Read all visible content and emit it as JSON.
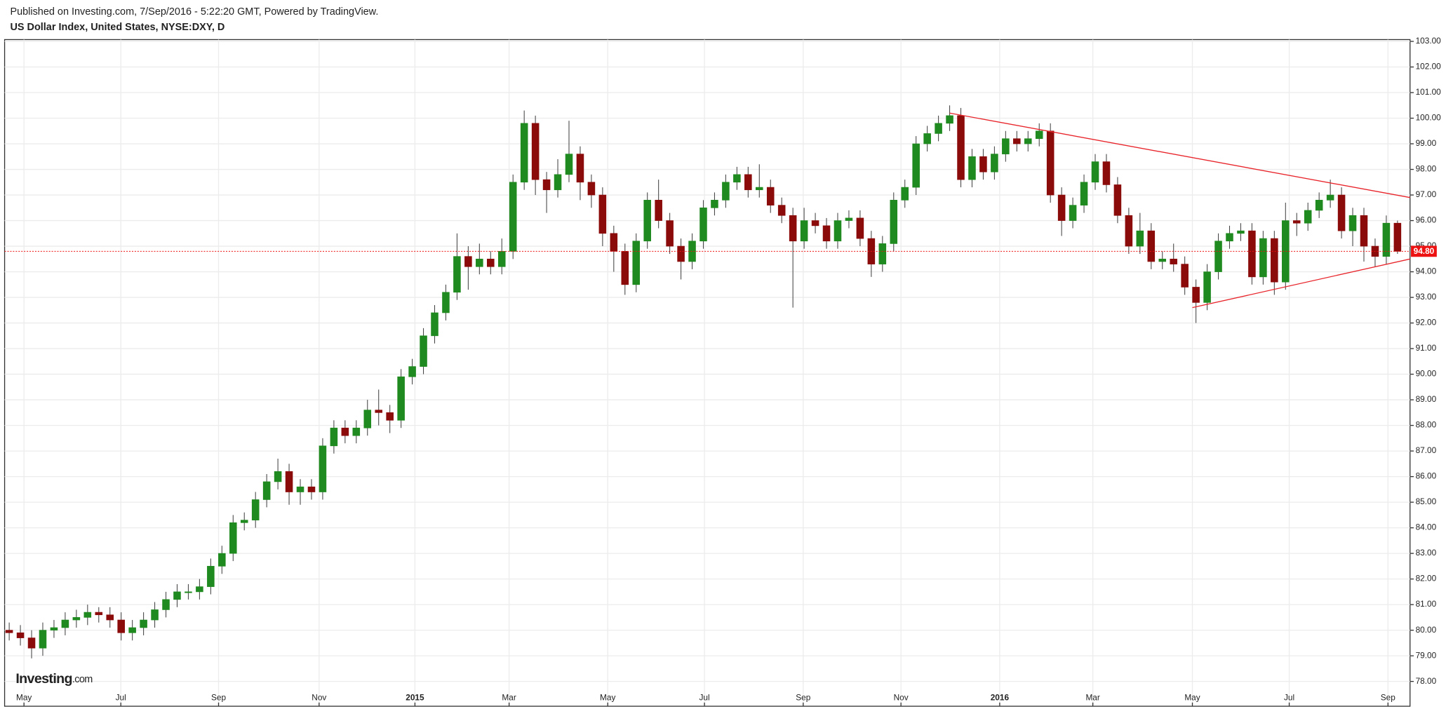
{
  "header": "Published on Investing.com, 7/Sep/2016 - 5:22:20 GMT, Powered by TradingView.",
  "logo": {
    "brand": "Investing",
    "suffix": ".com"
  },
  "chart_data": {
    "type": "candlestick",
    "title": "US Dollar Index, United States, NYSE:DXY, D",
    "up_color": "#1f8a1f",
    "down_color": "#8b0a0a",
    "wick_color": "#444444",
    "grid": true,
    "xlim": [
      -0.41,
      125.12
    ],
    "ylim": [
      77.03,
      103.07
    ],
    "xticks": [
      {
        "value": 1.32,
        "label": "May"
      },
      {
        "value": 9.97,
        "label": "Jul"
      },
      {
        "value": 18.7,
        "label": "Sep"
      },
      {
        "value": 27.68,
        "label": "Nov"
      },
      {
        "value": 36.24,
        "label": "2015"
      },
      {
        "value": 44.65,
        "label": "Mar"
      },
      {
        "value": 53.46,
        "label": "May"
      },
      {
        "value": 62.1,
        "label": "Jul"
      },
      {
        "value": 70.92,
        "label": "Sep"
      },
      {
        "value": 79.65,
        "label": "Nov"
      },
      {
        "value": 88.47,
        "label": "2016"
      },
      {
        "value": 96.79,
        "label": "Mar"
      },
      {
        "value": 105.68,
        "label": "May"
      },
      {
        "value": 114.33,
        "label": "Jul"
      },
      {
        "value": 123.15,
        "label": "Sep"
      }
    ],
    "yticks": [
      {
        "value": 78,
        "label": "78.00"
      },
      {
        "value": 79,
        "label": "79.00"
      },
      {
        "value": 80,
        "label": "80.00"
      },
      {
        "value": 81,
        "label": "81.00"
      },
      {
        "value": 82,
        "label": "82.00"
      },
      {
        "value": 83,
        "label": "83.00"
      },
      {
        "value": 84,
        "label": "84.00"
      },
      {
        "value": 85,
        "label": "85.00"
      },
      {
        "value": 86,
        "label": "86.00"
      },
      {
        "value": 87,
        "label": "87.00"
      },
      {
        "value": 88,
        "label": "88.00"
      },
      {
        "value": 89,
        "label": "89.00"
      },
      {
        "value": 90,
        "label": "90.00"
      },
      {
        "value": 91,
        "label": "91.00"
      },
      {
        "value": 92,
        "label": "92.00"
      },
      {
        "value": 93,
        "label": "93.00"
      },
      {
        "value": 94,
        "label": "94.00"
      },
      {
        "value": 95,
        "label": "95.00"
      },
      {
        "value": 96,
        "label": "96.00"
      },
      {
        "value": 97,
        "label": "97.00"
      },
      {
        "value": 98,
        "label": "98.00"
      },
      {
        "value": 99,
        "label": "99.00"
      },
      {
        "value": 100,
        "label": "100.00"
      },
      {
        "value": 101,
        "label": "101.00"
      },
      {
        "value": 102,
        "label": "102.00"
      },
      {
        "value": 103,
        "label": "103.00"
      }
    ],
    "open": [
      80.0,
      79.9,
      79.7,
      79.3,
      80.0,
      80.1,
      80.4,
      80.5,
      80.7,
      80.6,
      80.4,
      79.9,
      80.1,
      80.4,
      80.8,
      81.2,
      81.5,
      81.5,
      81.7,
      82.5,
      83.0,
      84.2,
      84.3,
      85.1,
      85.8,
      86.2,
      85.4,
      85.6,
      85.4,
      87.2,
      87.9,
      87.6,
      87.9,
      88.6,
      88.5,
      88.2,
      89.9,
      90.3,
      91.5,
      92.4,
      93.2,
      94.6,
      94.2,
      94.5,
      94.2,
      94.8,
      97.5,
      99.8,
      97.6,
      97.2,
      97.8,
      98.6,
      97.5,
      97.0,
      95.5,
      94.8,
      93.5,
      95.2,
      96.8,
      96.0,
      95.0,
      94.4,
      95.2,
      96.5,
      96.8,
      97.5,
      97.8,
      97.2,
      97.3,
      96.6,
      96.2,
      95.2,
      96.0,
      95.8,
      95.2,
      96.0,
      96.1,
      95.3,
      94.3,
      95.1,
      96.8,
      97.3,
      99.0,
      99.4,
      99.8,
      100.1,
      97.6,
      98.5,
      97.9,
      98.6,
      99.2,
      99.0,
      99.2,
      99.5,
      97.0,
      96.0,
      96.6,
      97.5,
      98.3,
      97.4,
      96.2,
      95.0,
      95.6,
      94.4,
      94.5,
      94.3,
      93.4,
      92.8,
      94.0,
      95.2,
      95.5,
      95.6,
      93.8,
      95.3,
      93.6,
      96.0,
      95.9,
      96.4,
      96.8,
      97.0,
      95.6,
      96.2,
      95.0,
      94.6,
      95.9
    ],
    "high": [
      80.3,
      80.2,
      80.0,
      80.3,
      80.4,
      80.7,
      80.8,
      81.0,
      80.9,
      80.9,
      80.7,
      80.4,
      80.7,
      81.1,
      81.5,
      81.8,
      81.8,
      82.0,
      82.8,
      83.3,
      84.5,
      84.6,
      85.4,
      86.1,
      86.7,
      86.5,
      85.9,
      85.9,
      87.5,
      88.2,
      88.2,
      88.2,
      89.0,
      89.4,
      88.8,
      90.2,
      90.6,
      91.8,
      92.7,
      93.5,
      95.5,
      95.0,
      95.1,
      94.8,
      95.3,
      97.8,
      100.3,
      100.1,
      97.9,
      98.4,
      99.9,
      98.9,
      97.8,
      97.3,
      95.8,
      95.1,
      95.5,
      97.1,
      97.6,
      96.3,
      95.3,
      95.5,
      96.8,
      97.1,
      97.8,
      98.1,
      98.1,
      98.2,
      97.6,
      96.9,
      96.5,
      96.5,
      96.3,
      96.1,
      96.3,
      96.4,
      96.4,
      95.6,
      95.4,
      97.1,
      97.6,
      99.3,
      99.7,
      100.1,
      100.5,
      100.4,
      98.8,
      98.8,
      98.9,
      99.5,
      99.5,
      99.5,
      99.8,
      99.8,
      97.3,
      96.9,
      97.8,
      98.6,
      98.6,
      97.7,
      96.5,
      96.3,
      95.9,
      94.8,
      95.1,
      94.6,
      93.7,
      94.3,
      95.5,
      95.8,
      95.9,
      95.9,
      95.6,
      95.6,
      96.7,
      96.3,
      96.7,
      97.1,
      97.6,
      97.3,
      96.5,
      96.5,
      95.3,
      96.2,
      96.0
    ],
    "low": [
      79.6,
      79.4,
      78.9,
      79.0,
      79.7,
      79.8,
      80.1,
      80.2,
      80.3,
      80.1,
      79.6,
      79.6,
      79.8,
      80.1,
      80.5,
      80.9,
      81.2,
      81.2,
      81.4,
      82.2,
      82.7,
      83.9,
      84.0,
      84.8,
      85.5,
      84.9,
      84.9,
      85.1,
      85.1,
      86.9,
      87.3,
      87.3,
      87.6,
      88.0,
      87.7,
      87.9,
      89.6,
      90.0,
      91.2,
      92.1,
      92.9,
      93.3,
      93.9,
      93.9,
      93.9,
      94.5,
      97.2,
      97.0,
      96.3,
      96.9,
      97.5,
      96.8,
      96.5,
      95.0,
      94.0,
      93.1,
      93.2,
      94.9,
      95.7,
      94.7,
      93.7,
      94.1,
      94.9,
      96.2,
      96.5,
      97.2,
      96.9,
      96.9,
      96.3,
      95.9,
      92.6,
      94.9,
      95.5,
      94.9,
      94.9,
      95.7,
      95.0,
      93.8,
      94.0,
      94.8,
      96.5,
      97.0,
      98.7,
      99.1,
      99.5,
      97.3,
      97.3,
      97.6,
      97.6,
      98.3,
      98.7,
      98.7,
      98.9,
      96.7,
      95.4,
      95.7,
      96.3,
      97.2,
      97.1,
      95.9,
      94.7,
      94.7,
      94.1,
      94.1,
      94.0,
      93.1,
      92.0,
      92.5,
      93.7,
      94.9,
      95.2,
      93.5,
      93.5,
      93.1,
      93.3,
      95.4,
      95.6,
      96.1,
      96.5,
      95.3,
      95.0,
      94.4,
      94.2,
      94.3,
      94.7
    ],
    "close": [
      79.9,
      79.7,
      79.3,
      80.0,
      80.1,
      80.4,
      80.5,
      80.7,
      80.6,
      80.4,
      79.9,
      80.1,
      80.4,
      80.8,
      81.2,
      81.5,
      81.5,
      81.7,
      82.5,
      83.0,
      84.2,
      84.3,
      85.1,
      85.8,
      86.2,
      85.4,
      85.6,
      85.4,
      87.2,
      87.9,
      87.6,
      87.9,
      88.6,
      88.5,
      88.2,
      89.9,
      90.3,
      91.5,
      92.4,
      93.2,
      94.6,
      94.2,
      94.5,
      94.2,
      94.8,
      97.5,
      99.8,
      97.6,
      97.2,
      97.8,
      98.6,
      97.5,
      97.0,
      95.5,
      94.8,
      93.5,
      95.2,
      96.8,
      96.0,
      95.0,
      94.4,
      95.2,
      96.5,
      96.8,
      97.5,
      97.8,
      97.2,
      97.3,
      96.6,
      96.2,
      95.2,
      96.0,
      95.8,
      95.2,
      96.0,
      96.1,
      95.3,
      94.3,
      95.1,
      96.8,
      97.3,
      99.0,
      99.4,
      99.8,
      100.1,
      97.6,
      98.5,
      97.9,
      98.6,
      99.2,
      99.0,
      99.2,
      99.5,
      97.0,
      96.0,
      96.6,
      97.5,
      98.3,
      97.4,
      96.2,
      95.0,
      95.6,
      94.4,
      94.5,
      94.3,
      93.4,
      92.8,
      94.0,
      95.2,
      95.5,
      95.6,
      93.8,
      95.3,
      93.6,
      96.0,
      95.9,
      96.4,
      96.8,
      97.0,
      95.6,
      96.2,
      95.0,
      94.6,
      95.9,
      94.8
    ],
    "trendlines": [
      {
        "x": [
          84,
          125.12
        ],
        "y": [
          100.2,
          96.9
        ],
        "color": "#e8242a"
      },
      {
        "x": [
          105.68,
          125.12
        ],
        "y": [
          92.6,
          94.5
        ],
        "color": "#e8242a"
      }
    ],
    "last_price": {
      "value": 94.8,
      "label": "94.80",
      "color": "#ee1111"
    }
  }
}
